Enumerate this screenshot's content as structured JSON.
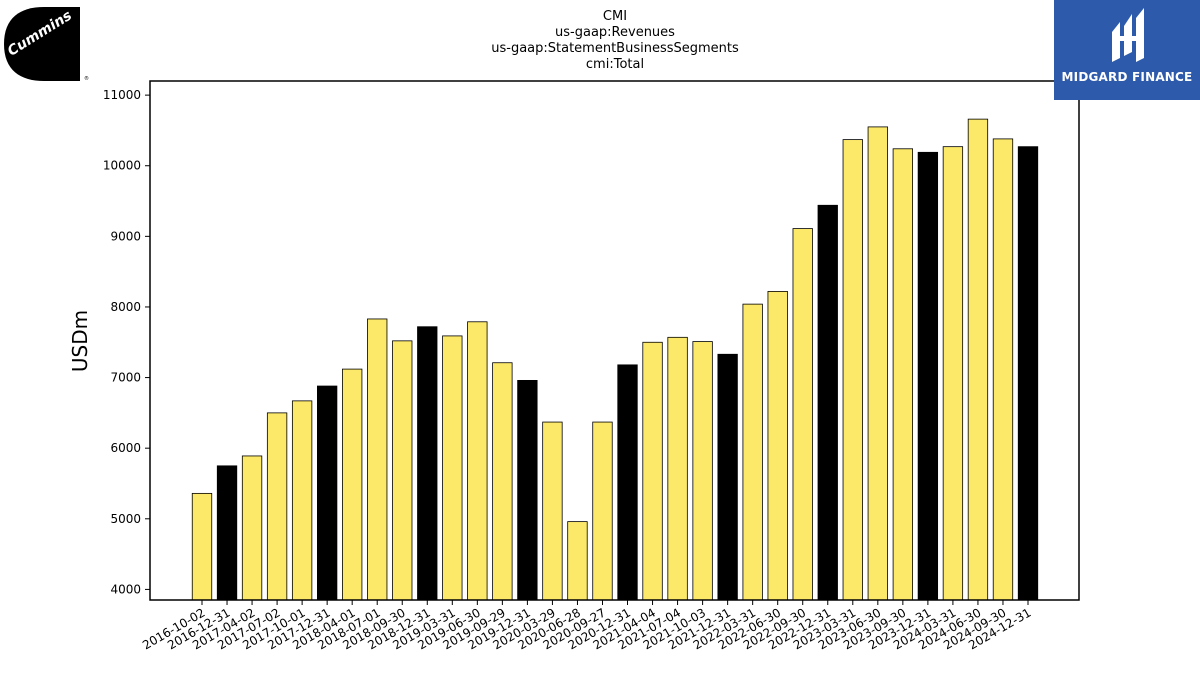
{
  "chart_data": {
    "type": "bar",
    "title_lines": [
      "CMI",
      "us-gaap:Revenues",
      "us-gaap:StatementBusinessSegments",
      "cmi:Total"
    ],
    "ylabel": "USDm",
    "xlabel": "",
    "ylim": [
      3850,
      11200
    ],
    "yticks": [
      4000,
      5000,
      6000,
      7000,
      8000,
      9000,
      10000,
      11000
    ],
    "grid": false,
    "colors": {
      "quarter": "#fce96a",
      "year_end": "#000000",
      "edge": "#000000"
    },
    "categories": [
      "2016-10-02",
      "2016-12-31",
      "2017-04-02",
      "2017-07-02",
      "2017-10-01",
      "2017-12-31",
      "2018-04-01",
      "2018-07-01",
      "2018-09-30",
      "2018-12-31",
      "2019-03-31",
      "2019-06-30",
      "2019-09-29",
      "2019-12-31",
      "2020-03-29",
      "2020-06-28",
      "2020-09-27",
      "2020-12-31",
      "2021-04-04",
      "2021-07-04",
      "2021-10-03",
      "2021-12-31",
      "2022-03-31",
      "2022-06-30",
      "2022-09-30",
      "2022-12-31",
      "2023-03-31",
      "2023-06-30",
      "2023-09-30",
      "2023-12-31",
      "2024-03-31",
      "2024-06-30",
      "2024-09-30",
      "2024-12-31"
    ],
    "values": [
      5360,
      5750,
      5890,
      6500,
      6670,
      6880,
      7120,
      7830,
      7520,
      7720,
      7590,
      7790,
      7210,
      6960,
      6370,
      4960,
      6370,
      7180,
      7500,
      7570,
      7510,
      7330,
      8040,
      8220,
      9110,
      9440,
      10370,
      10550,
      10240,
      10190,
      10270,
      10660,
      10380,
      10270
    ],
    "year_end": [
      false,
      true,
      false,
      false,
      false,
      true,
      false,
      false,
      false,
      true,
      false,
      false,
      false,
      true,
      false,
      false,
      false,
      true,
      false,
      false,
      false,
      true,
      false,
      false,
      false,
      true,
      false,
      false,
      false,
      true,
      false,
      false,
      false,
      true
    ]
  },
  "logos": {
    "left": {
      "name": "Cummins",
      "text": "Cummins"
    },
    "right": {
      "name": "Midgard Finance",
      "text": "MIDGARD FINANCE",
      "bg": "#2e5aac"
    }
  }
}
